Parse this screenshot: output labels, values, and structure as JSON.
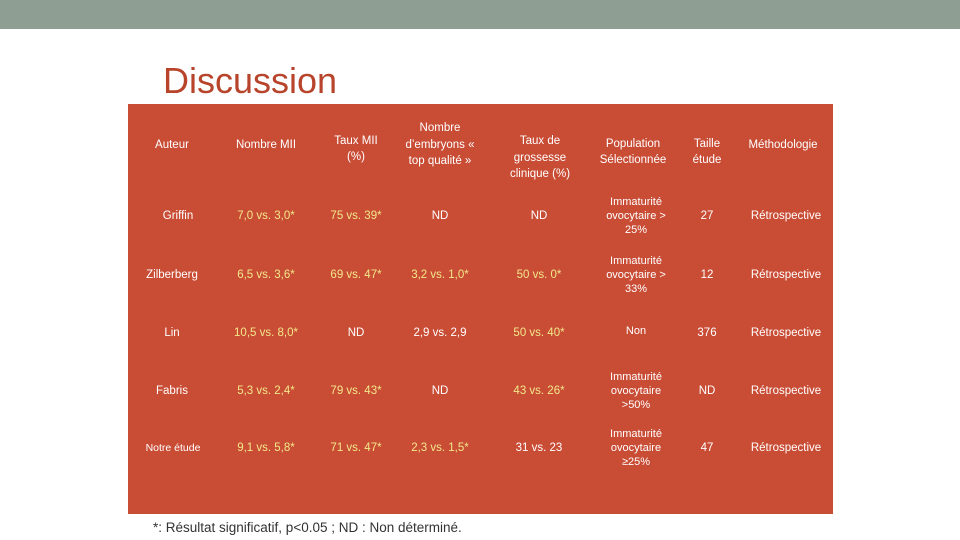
{
  "slide": {
    "title": "Discussion",
    "footnote": "*: Résultat significatif, p<0.05 ; ND : Non déterminé."
  },
  "colors": {
    "topbar": "#8f9e93",
    "title": "#b8442c",
    "table_bg": "#c94c35",
    "header_text": "#ffffff",
    "value_text": "#f2e88a"
  },
  "table": {
    "headers": [
      "Auteur",
      "Nombre MII",
      "Taux MII (%)",
      "Nombre d’embryons « top qualité »",
      "Taux de grossesse clinique (%)",
      "Population Sélectionnée",
      "Taille étude",
      "Méthodologie"
    ],
    "rows": [
      [
        "Griffin",
        "7,0 vs. 3,0*",
        "75 vs. 39*",
        "ND",
        "ND",
        "Immaturité ovocytaire > 25%",
        "27",
        "Rétrospective"
      ],
      [
        "Zilberberg",
        "6,5 vs. 3,6*",
        "69 vs. 47*",
        "3,2 vs. 1,0*",
        "50 vs. 0*",
        "Immaturité ovocytaire > 33%",
        "12",
        "Rétrospective"
      ],
      [
        "Lin",
        "10,5 vs. 8,0*",
        "ND",
        "2,9 vs. 2,9",
        "50 vs. 40*",
        "Non",
        "376",
        "Rétrospective"
      ],
      [
        "Fabris",
        "5,3 vs. 2,4*",
        "79 vs. 43*",
        "ND",
        "43 vs. 26*",
        "Immaturité ovocytaire >50%",
        "ND",
        "Rétrospective"
      ],
      [
        "Notre étude",
        "9,1 vs. 5,8*",
        "71 vs. 47*",
        "2,3 vs. 1,5*",
        "31 vs. 23",
        "Immaturité ovocytaire ≥25%",
        "47",
        "Rétrospective"
      ]
    ]
  }
}
